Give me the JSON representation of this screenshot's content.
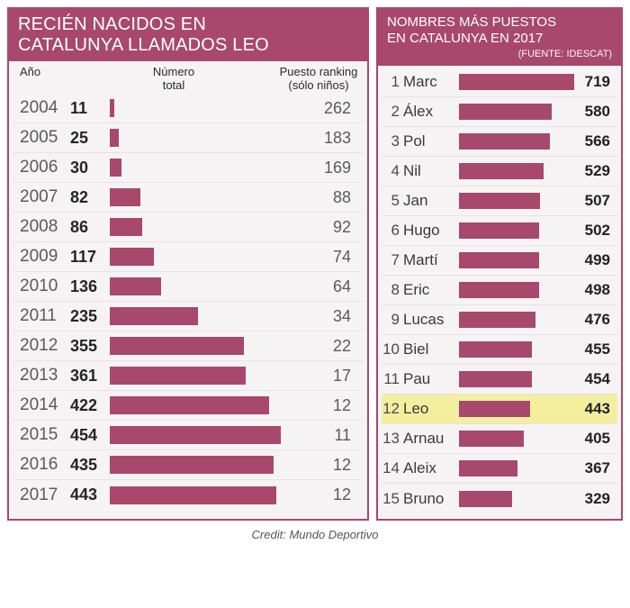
{
  "colors": {
    "accent": "#a8486d",
    "panel_bg": "#f6f3f4",
    "highlight_bg": "#f3ef9e",
    "text": "#3c3c3c",
    "border": "#e9e2e5"
  },
  "credit": "Credit: Mundo Deportivo",
  "left": {
    "type": "table-bar",
    "title_line1": "RECIÉN NACIDOS EN",
    "title_line2": "CATALUNYA LLAMADOS LEO",
    "col_year": "Año",
    "col_total_line1": "Número",
    "col_total_line2": "total",
    "col_rank_line1": "Puesto ranking",
    "col_rank_line2": "(sólo niños)",
    "bar_max": 454,
    "rows": [
      {
        "year": "2004",
        "total": 11,
        "rank": 262
      },
      {
        "year": "2005",
        "total": 25,
        "rank": 183
      },
      {
        "year": "2006",
        "total": 30,
        "rank": 169
      },
      {
        "year": "2007",
        "total": 82,
        "rank": 88
      },
      {
        "year": "2008",
        "total": 86,
        "rank": 92
      },
      {
        "year": "2009",
        "total": 117,
        "rank": 74
      },
      {
        "year": "2010",
        "total": 136,
        "rank": 64
      },
      {
        "year": "2011",
        "total": 235,
        "rank": 34
      },
      {
        "year": "2012",
        "total": 355,
        "rank": 22
      },
      {
        "year": "2013",
        "total": 361,
        "rank": 17
      },
      {
        "year": "2014",
        "total": 422,
        "rank": 12
      },
      {
        "year": "2015",
        "total": 454,
        "rank": 11
      },
      {
        "year": "2016",
        "total": 435,
        "rank": 12
      },
      {
        "year": "2017",
        "total": 443,
        "rank": 12
      }
    ]
  },
  "right": {
    "type": "ranking-bar",
    "title_line1": "NOMBRES MÁS PUESTOS",
    "title_line2": "EN CATALUNYA EN 2017",
    "source": "(FUENTE: IDESCAT)",
    "bar_max": 719,
    "highlight_name": "Leo",
    "rows": [
      {
        "idx": 1,
        "name": "Marc",
        "val": 719
      },
      {
        "idx": 2,
        "name": "Álex",
        "val": 580
      },
      {
        "idx": 3,
        "name": "Pol",
        "val": 566
      },
      {
        "idx": 4,
        "name": "Nil",
        "val": 529
      },
      {
        "idx": 5,
        "name": "Jan",
        "val": 507
      },
      {
        "idx": 6,
        "name": "Hugo",
        "val": 502
      },
      {
        "idx": 7,
        "name": "Martí",
        "val": 499
      },
      {
        "idx": 8,
        "name": "Eric",
        "val": 498
      },
      {
        "idx": 9,
        "name": "Lucas",
        "val": 476
      },
      {
        "idx": 10,
        "name": "Biel",
        "val": 455
      },
      {
        "idx": 11,
        "name": "Pau",
        "val": 454
      },
      {
        "idx": 12,
        "name": "Leo",
        "val": 443
      },
      {
        "idx": 13,
        "name": "Arnau",
        "val": 405
      },
      {
        "idx": 14,
        "name": "Aleix",
        "val": 367
      },
      {
        "idx": 15,
        "name": "Bruno",
        "val": 329
      }
    ]
  }
}
